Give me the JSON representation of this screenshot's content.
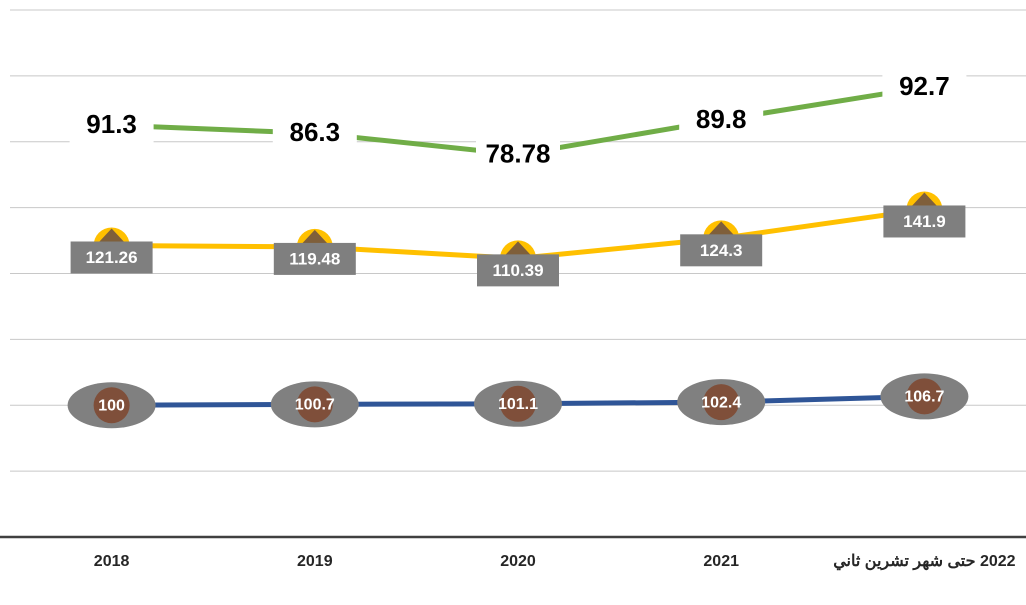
{
  "chart_data": {
    "type": "line",
    "stacked": true,
    "categories": [
      "2018",
      "2019",
      "2020",
      "2021",
      "2022 حتى شهر تشرين ثاني"
    ],
    "series": [
      {
        "color": "#2f5597",
        "values": [
          100,
          100.7,
          101.1,
          102.4,
          106.7
        ]
      },
      {
        "color": "#ffc000",
        "values": [
          121.26,
          119.48,
          110.39,
          124.3,
          141.9
        ]
      },
      {
        "color": "#70ad47",
        "values": [
          91.3,
          86.3,
          78.78,
          89.8,
          92.7
        ]
      }
    ],
    "ylim": [
      0,
      400
    ],
    "yticks": [
      0,
      50,
      100,
      150,
      200,
      250,
      300,
      350,
      400
    ],
    "grid": true
  }
}
